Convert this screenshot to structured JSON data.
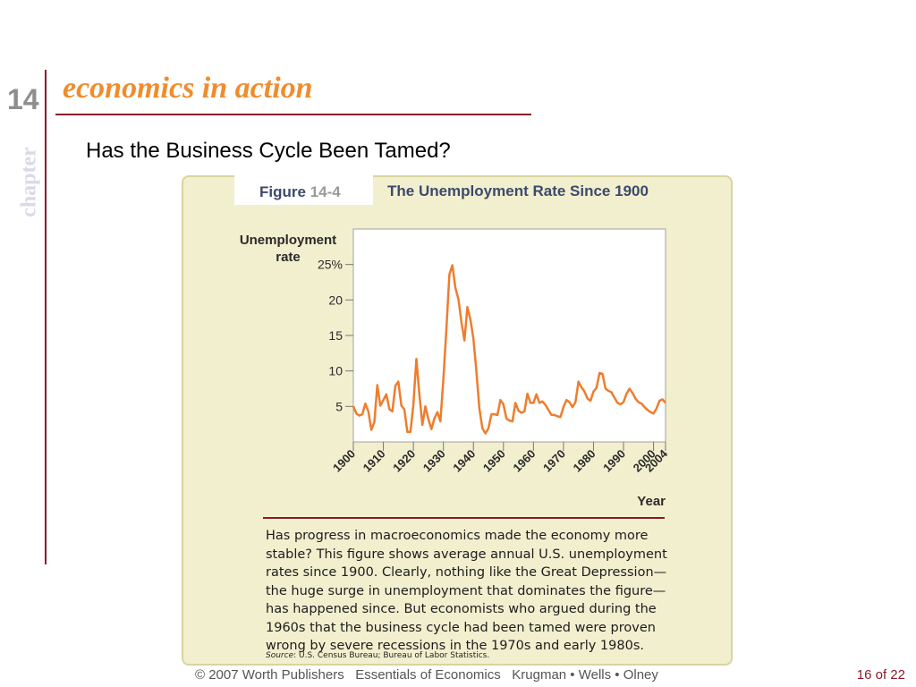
{
  "slide": {
    "chapter_number": "14",
    "chapter_word": "chapter",
    "section_title": "economics in action",
    "heading": "Has the Business Cycle Been Tamed?"
  },
  "figure": {
    "label": "Figure",
    "number": "14-4",
    "title": "The Unemployment Rate Since 1900",
    "caption": "Has progress in macroeconomics made the economy more stable? This figure shows average annual U.S. unemployment rates since 1900. Clearly, nothing like the Great Depression—the huge surge in unemployment that dominates the figure—has happened since. But economists who argued during the 1960s that the business cycle had been tamed were proven wrong by severe recessions in the 1970s and early 1980s.",
    "source_label": "Source",
    "source_text": ": U.S. Census Bureau; Bureau of Labor Statistics."
  },
  "chart_data": {
    "type": "line",
    "title": "The Unemployment Rate Since 1900",
    "ylabel_line1": "Unemployment",
    "ylabel_line2": "rate",
    "xlabel": "Year",
    "xlim": [
      1900,
      2004
    ],
    "ylim": [
      0,
      30
    ],
    "yticks": [
      5,
      10,
      15,
      20,
      25
    ],
    "ytick_labels": [
      "5",
      "10",
      "15",
      "20",
      "25%"
    ],
    "xticks": [
      1900,
      1910,
      1920,
      1930,
      1940,
      1950,
      1960,
      1970,
      1980,
      1990,
      2000,
      2004
    ],
    "xtick_labels": [
      "1900",
      "1910",
      "1920",
      "1930",
      "1940",
      "1950",
      "1960",
      "1970",
      "1980",
      "1990",
      "2000",
      "2004"
    ],
    "grid": false,
    "color": "#ee7d2e",
    "series": [
      {
        "x": [
          1900,
          1901,
          1902,
          1903,
          1904,
          1905,
          1906,
          1907,
          1908,
          1909,
          1910,
          1911,
          1912,
          1913,
          1914,
          1915,
          1916,
          1917,
          1918,
          1919,
          1920,
          1921,
          1922,
          1923,
          1924,
          1925,
          1926,
          1927,
          1928,
          1929,
          1930,
          1931,
          1932,
          1933,
          1934,
          1935,
          1936,
          1937,
          1938,
          1939,
          1940,
          1941,
          1942,
          1943,
          1944,
          1945,
          1946,
          1947,
          1948,
          1949,
          1950,
          1951,
          1952,
          1953,
          1954,
          1955,
          1956,
          1957,
          1958,
          1959,
          1960,
          1961,
          1962,
          1963,
          1964,
          1965,
          1966,
          1967,
          1968,
          1969,
          1970,
          1971,
          1972,
          1973,
          1974,
          1975,
          1976,
          1977,
          1978,
          1979,
          1980,
          1981,
          1982,
          1983,
          1984,
          1985,
          1986,
          1987,
          1988,
          1989,
          1990,
          1991,
          1992,
          1993,
          1994,
          1995,
          1996,
          1997,
          1998,
          1999,
          2000,
          2001,
          2002,
          2003,
          2004
        ],
        "y": [
          5.0,
          4.0,
          3.7,
          3.9,
          5.4,
          4.3,
          1.7,
          2.8,
          8.0,
          5.1,
          5.9,
          6.7,
          4.6,
          4.3,
          7.9,
          8.5,
          5.1,
          4.6,
          1.4,
          1.4,
          5.2,
          11.7,
          6.7,
          2.4,
          5.0,
          3.2,
          1.8,
          3.3,
          4.2,
          2.9,
          8.9,
          15.9,
          23.6,
          24.9,
          21.7,
          20.1,
          16.9,
          14.3,
          19.0,
          17.2,
          14.6,
          9.9,
          4.7,
          1.9,
          1.2,
          1.9,
          3.9,
          3.9,
          3.8,
          5.9,
          5.3,
          3.3,
          3.0,
          2.9,
          5.5,
          4.4,
          4.1,
          4.3,
          6.8,
          5.5,
          5.5,
          6.7,
          5.5,
          5.7,
          5.2,
          4.5,
          3.8,
          3.8,
          3.6,
          3.5,
          4.9,
          5.9,
          5.6,
          4.9,
          5.6,
          8.5,
          7.7,
          7.1,
          6.1,
          5.8,
          7.1,
          7.6,
          9.7,
          9.6,
          7.5,
          7.2,
          7.0,
          6.2,
          5.5,
          5.3,
          5.6,
          6.8,
          7.5,
          6.9,
          6.1,
          5.6,
          5.4,
          4.9,
          4.5,
          4.2,
          4.0,
          4.7,
          5.8,
          6.0,
          5.5
        ]
      }
    ]
  },
  "footer": {
    "text": "© 2007 Worth Publishers   Essentials of Economics   Krugman • Wells • Olney",
    "page": "16 of 22"
  }
}
